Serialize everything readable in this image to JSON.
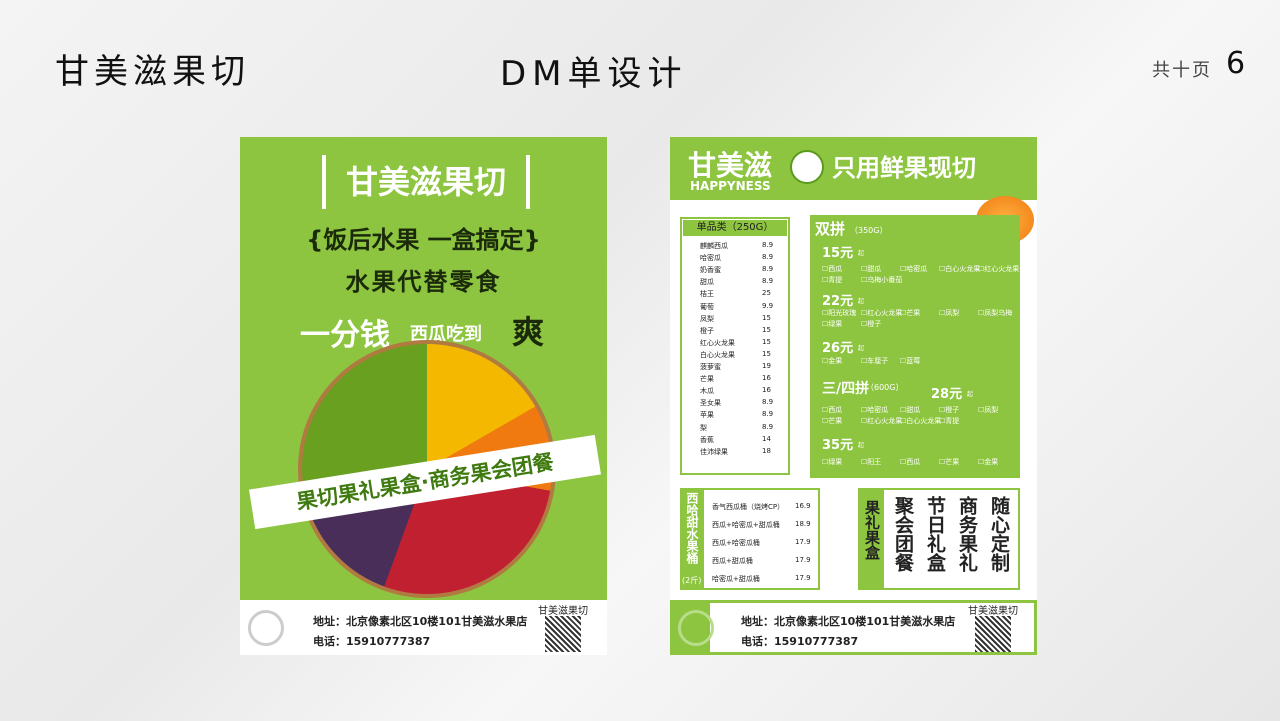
{
  "header": {
    "brand": "甘美滋果切",
    "subtitle": "DM单设计",
    "page_label": "共十页",
    "page_number": "6"
  },
  "front": {
    "brand": "甘美滋果切",
    "slogan": "{饭后水果 一盒搞定}",
    "line2": "水果代替零食",
    "promo_big": "一分钱",
    "promo_small": "西瓜吃到",
    "promo_end": "爽",
    "banner": "果切果礼果盒·商务果会团餐",
    "footer": {
      "address": "地址：北京像素北区10楼101甘美滋水果店",
      "phone": "电话：15910777387",
      "qr_label": "甘美滋果切"
    }
  },
  "back": {
    "brand": "甘美滋",
    "brand_en": "HAPPYNESS",
    "tagline": "只用鲜果现切",
    "single": {
      "title": "单品类（250G）",
      "items": [
        [
          "麒麟西瓜",
          "8.9"
        ],
        [
          "哈密瓜",
          "8.9"
        ],
        [
          "奶香蜜",
          "8.9"
        ],
        [
          "甜瓜",
          "8.9"
        ],
        [
          "桔王",
          "25"
        ],
        [
          "葡萄",
          "9.9"
        ],
        [
          "凤梨",
          "15"
        ],
        [
          "橙子",
          "15"
        ],
        [
          "红心火龙果",
          "15"
        ],
        [
          "白心火龙果",
          "15"
        ],
        [
          "菠萝蜜",
          "19"
        ],
        [
          "芒果",
          "16"
        ],
        [
          "木瓜",
          "16"
        ],
        [
          "圣女果",
          "8.9"
        ],
        [
          "苹果",
          "8.9"
        ],
        [
          "梨",
          "8.9"
        ],
        [
          "香蕉",
          "14"
        ],
        [
          "佳沛绿果",
          "18"
        ]
      ]
    },
    "combo": {
      "title": "双拼",
      "weight": "（350G）",
      "title2": "三/四拼",
      "weight2": "（600G）",
      "suffix": "起",
      "tiers": [
        {
          "price": "15元",
          "items": [
            "西瓜",
            "甜瓜",
            "哈密瓜",
            "白心火龙果",
            "红心火龙果",
            "青提",
            "乌梅小番茄"
          ]
        },
        {
          "price": "22元",
          "items": [
            "阳光玫瑰",
            "红心火龙果",
            "芒果",
            "凤梨",
            "凤梨乌梅",
            "绿果",
            "橙子"
          ]
        },
        {
          "price": "26元",
          "items": [
            "金果",
            "车厘子",
            "蓝莓"
          ]
        },
        {
          "price": "28元",
          "items": [
            "西瓜",
            "哈密瓜",
            "甜瓜",
            "橙子",
            "凤梨",
            "芒果",
            "红心火龙果",
            "白心火龙果",
            "青提"
          ]
        },
        {
          "price": "35元",
          "items": [
            "绿果",
            "阳王",
            "西瓜",
            "芒果",
            "金果"
          ]
        }
      ]
    },
    "bucket": {
      "title": "西哈甜水果桶",
      "weight": "(2斤)",
      "items": [
        [
          "香气西瓜桶（烧烤CP）",
          "16.9"
        ],
        [
          "西瓜+哈密瓜+甜瓜桶",
          "18.9"
        ],
        [
          "西瓜+哈密瓜桶",
          "17.9"
        ],
        [
          "西瓜+甜瓜桶",
          "17.9"
        ],
        [
          "哈密瓜+甜瓜桶",
          "17.9"
        ]
      ]
    },
    "gift": {
      "title": "果礼果盒",
      "columns": [
        "聚会团餐",
        "节日礼盒",
        "商务果礼",
        "随心定制"
      ]
    },
    "footer": {
      "address": "地址：北京像素北区10楼101甘美滋水果店",
      "phone": "电话：15910777387",
      "qr_label": "甘美滋果切"
    }
  }
}
